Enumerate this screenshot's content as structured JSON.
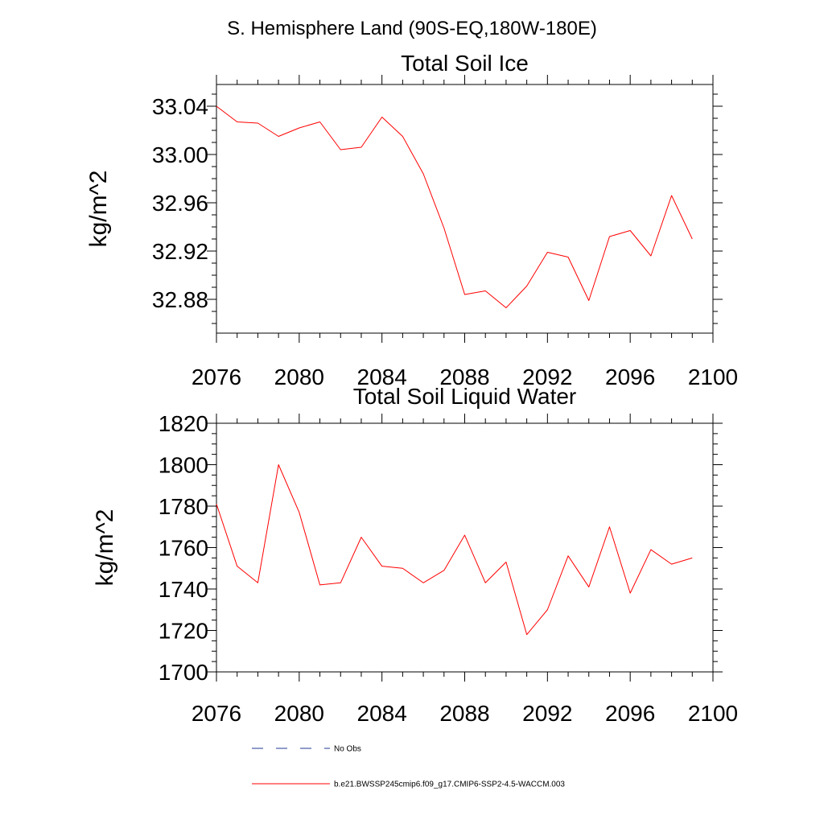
{
  "figure_title": "S. Hemisphere Land (90S-EQ,180W-180E)",
  "colors": {
    "model": "#ff0000",
    "obs": "#1f3a93",
    "axis": "#000000"
  },
  "legend": {
    "obs_label": "No Obs",
    "model_label": "b.e21.BWSSP245cmip6.f09_g17.CMIP6-SSP2-4.5-WACCM.003"
  },
  "chart_data": [
    {
      "type": "line",
      "title": "Total Soil Ice",
      "xlabel": "",
      "ylabel": "kg/m^2",
      "xlim": [
        2076,
        2100
      ],
      "ylim": [
        32.852,
        33.058
      ],
      "xticks": [
        2076,
        2080,
        2084,
        2088,
        2092,
        2096,
        2100
      ],
      "xtick_labels": [
        "2076",
        "2080",
        "2084",
        "2088",
        "2092",
        "2096",
        "2100"
      ],
      "yticks": [
        32.88,
        32.92,
        32.96,
        33.0,
        33.04
      ],
      "ytick_labels": [
        "32.88",
        "32.92",
        "32.96",
        "33.00",
        "33.04"
      ],
      "grid": false,
      "series": [
        {
          "name": "b.e21.BWSSP245cmip6.f09_g17.CMIP6-SSP2-4.5-WACCM.003",
          "x": [
            2076,
            2077,
            2078,
            2079,
            2080,
            2081,
            2082,
            2083,
            2084,
            2085,
            2086,
            2087,
            2088,
            2089,
            2090,
            2091,
            2092,
            2093,
            2094,
            2095,
            2096,
            2097,
            2098,
            2099
          ],
          "values": [
            33.04,
            33.027,
            33.026,
            33.015,
            33.022,
            33.027,
            33.004,
            33.006,
            33.031,
            33.015,
            32.984,
            32.939,
            32.884,
            32.887,
            32.873,
            32.891,
            32.919,
            32.915,
            32.879,
            32.932,
            32.937,
            32.916,
            32.966,
            32.93
          ]
        }
      ]
    },
    {
      "type": "line",
      "title": "Total Soil Liquid Water",
      "xlabel": "",
      "ylabel": "kg/m^2",
      "xlim": [
        2076,
        2100
      ],
      "ylim": [
        1700,
        1820
      ],
      "xticks": [
        2076,
        2080,
        2084,
        2088,
        2092,
        2096,
        2100
      ],
      "xtick_labels": [
        "2076",
        "2080",
        "2084",
        "2088",
        "2092",
        "2096",
        "2100"
      ],
      "yticks": [
        1700,
        1720,
        1740,
        1760,
        1780,
        1800,
        1820
      ],
      "ytick_labels": [
        "1700",
        "1720",
        "1740",
        "1760",
        "1780",
        "1800",
        "1820"
      ],
      "grid": false,
      "series": [
        {
          "name": "b.e21.BWSSP245cmip6.f09_g17.CMIP6-SSP2-4.5-WACCM.003",
          "x": [
            2076,
            2077,
            2078,
            2079,
            2080,
            2081,
            2082,
            2083,
            2084,
            2085,
            2086,
            2087,
            2088,
            2089,
            2090,
            2091,
            2092,
            2093,
            2094,
            2095,
            2096,
            2097,
            2098,
            2099
          ],
          "values": [
            1781,
            1751,
            1743,
            1800,
            1777,
            1742,
            1743,
            1765,
            1751,
            1750,
            1743,
            1749,
            1766,
            1743,
            1753,
            1718,
            1730,
            1756,
            1741,
            1770,
            1738,
            1759,
            1752,
            1755
          ]
        }
      ]
    }
  ]
}
